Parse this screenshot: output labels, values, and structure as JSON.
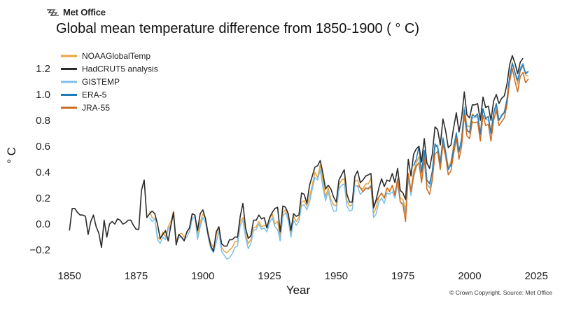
{
  "header": {
    "logo_text": "Met Office",
    "logo_icon": "met-office-wave-icon"
  },
  "chart_data": {
    "type": "line",
    "title": "Global mean temperature difference from 1850-1900 ( ° C)",
    "xlabel": "Year",
    "ylabel": "° C",
    "xlim": [
      1846,
      2026
    ],
    "ylim": [
      -0.28,
      1.34
    ],
    "xticks": [
      1850,
      1875,
      1900,
      1925,
      1950,
      1975,
      2000,
      2025
    ],
    "yticks": [
      -0.2,
      0.0,
      0.2,
      0.4,
      0.6,
      0.8,
      1.0,
      1.2
    ],
    "ytick_labels": [
      "−0.2",
      "0.0",
      "0.2",
      "0.4",
      "0.6",
      "0.8",
      "1.0",
      "1.2"
    ],
    "legend_position": "top-left",
    "grid": false,
    "credit": "© Crown Copyright. Source: Met Office",
    "series": [
      {
        "name": "NOAAGlobalTemp",
        "color": "#e8a33a",
        "x_start": 1880,
        "values": [
          0.1,
          0.05,
          0.04,
          -0.1,
          -0.12,
          -0.06,
          -0.1,
          -0.02,
          0.02,
          0.1,
          -0.13,
          -0.08,
          -0.07,
          -0.1,
          -0.07,
          -0.03,
          0.08,
          0.07,
          -0.08,
          0.01,
          0.08,
          0.04,
          -0.07,
          -0.15,
          -0.18,
          -0.09,
          -0.02,
          -0.18,
          -0.21,
          -0.22,
          -0.2,
          -0.18,
          -0.14,
          -0.13,
          0.02,
          0.05,
          -0.08,
          -0.15,
          -0.12,
          -0.03,
          -0.02,
          0.02,
          -0.02,
          -0.01,
          -0.02,
          0.04,
          0.08,
          0.0,
          0.02,
          -0.1,
          0.09,
          0.11,
          0.06,
          -0.07,
          0.06,
          0.02,
          0.05,
          0.17,
          0.18,
          0.14,
          0.21,
          0.3,
          0.4,
          0.36,
          0.46,
          0.34,
          0.21,
          0.28,
          0.19,
          0.15,
          0.14,
          0.3,
          0.34,
          0.35,
          0.18,
          0.14,
          0.15,
          0.33,
          0.34,
          0.28,
          0.27,
          0.31,
          0.31,
          0.35,
          0.08,
          0.13,
          0.21,
          0.24,
          0.2,
          0.28,
          0.26,
          0.29,
          0.24,
          0.34,
          0.2,
          0.19,
          0.11,
          0.39,
          0.26,
          0.41,
          0.47,
          0.52,
          0.39,
          0.55,
          0.33,
          0.32,
          0.4,
          0.6,
          0.61,
          0.48,
          0.66,
          0.56,
          0.44,
          0.48,
          0.61,
          0.7,
          0.56,
          0.66,
          0.9,
          0.76,
          0.75,
          0.85,
          0.83,
          0.83,
          0.7,
          0.89,
          0.82,
          0.83,
          0.71,
          0.86,
          0.93,
          0.8,
          0.84,
          0.87,
          0.97,
          1.13,
          1.25,
          1.16,
          1.08,
          1.18,
          1.22,
          1.15,
          1.14
        ]
      },
      {
        "name": "HadCRUT5 analysis",
        "color": "#2b2b2b",
        "x_start": 1850,
        "values": [
          -0.05,
          0.12,
          0.12,
          0.09,
          0.07,
          0.07,
          0.06,
          -0.08,
          0.02,
          0.07,
          -0.02,
          -0.07,
          -0.18,
          0.03,
          -0.1,
          0.0,
          0.02,
          0.0,
          0.04,
          0.03,
          0.0,
          0.01,
          0.03,
          0.03,
          -0.01,
          -0.04,
          -0.04,
          0.26,
          0.34,
          0.05,
          0.08,
          0.1,
          0.08,
          0.0,
          -0.11,
          -0.08,
          -0.05,
          -0.13,
          -0.01,
          0.09,
          -0.16,
          -0.08,
          -0.1,
          -0.13,
          -0.06,
          -0.03,
          0.08,
          0.07,
          -0.05,
          0.08,
          0.11,
          0.04,
          -0.08,
          -0.17,
          -0.21,
          -0.06,
          -0.02,
          -0.15,
          -0.17,
          -0.17,
          -0.12,
          -0.12,
          -0.1,
          -0.1,
          0.06,
          0.16,
          -0.03,
          -0.11,
          -0.09,
          0.03,
          0.03,
          0.07,
          0.04,
          0.05,
          -0.03,
          0.05,
          0.09,
          0.12,
          0.13,
          -0.06,
          0.14,
          0.13,
          0.08,
          -0.05,
          0.08,
          0.06,
          0.07,
          0.24,
          0.23,
          0.16,
          0.3,
          0.37,
          0.44,
          0.45,
          0.49,
          0.39,
          0.27,
          0.3,
          0.27,
          0.21,
          0.17,
          0.34,
          0.38,
          0.42,
          0.23,
          0.17,
          0.17,
          0.37,
          0.41,
          0.32,
          0.34,
          0.37,
          0.38,
          0.39,
          0.13,
          0.19,
          0.28,
          0.35,
          0.29,
          0.34,
          0.33,
          0.39,
          0.32,
          0.43,
          0.26,
          0.24,
          0.19,
          0.5,
          0.37,
          0.54,
          0.58,
          0.6,
          0.48,
          0.66,
          0.47,
          0.43,
          0.54,
          0.75,
          0.73,
          0.61,
          0.81,
          0.72,
          0.59,
          0.61,
          0.74,
          0.86,
          0.71,
          0.82,
          1.02,
          0.84,
          0.82,
          0.92,
          0.92,
          0.93,
          0.8,
          0.98,
          0.9,
          0.91,
          0.8,
          0.95,
          1.0,
          0.93,
          0.97,
          0.99,
          1.08,
          1.23,
          1.3,
          1.24,
          1.16,
          1.25,
          1.28
        ]
      },
      {
        "name": "GISTEMP",
        "color": "#7cc0ec",
        "x_start": 1880,
        "values": [
          0.05,
          0.02,
          0.04,
          -0.12,
          -0.15,
          -0.1,
          -0.12,
          -0.04,
          -0.01,
          0.07,
          -0.15,
          -0.1,
          -0.1,
          -0.12,
          -0.1,
          -0.06,
          0.04,
          0.06,
          -0.12,
          -0.02,
          0.05,
          0.01,
          -0.1,
          -0.19,
          -0.22,
          -0.14,
          -0.06,
          -0.21,
          -0.24,
          -0.27,
          -0.26,
          -0.23,
          -0.18,
          -0.17,
          -0.01,
          0.03,
          -0.1,
          -0.19,
          -0.15,
          -0.05,
          -0.04,
          0.0,
          -0.04,
          -0.03,
          -0.06,
          0.01,
          0.05,
          -0.02,
          -0.04,
          -0.13,
          0.06,
          0.09,
          0.03,
          -0.1,
          0.03,
          -0.01,
          0.02,
          0.14,
          0.15,
          0.11,
          0.17,
          0.27,
          0.36,
          0.34,
          0.42,
          0.28,
          0.18,
          0.25,
          0.16,
          0.1,
          0.1,
          0.27,
          0.3,
          0.31,
          0.14,
          0.1,
          0.11,
          0.3,
          0.29,
          0.23,
          0.25,
          0.27,
          0.28,
          0.3,
          0.05,
          0.08,
          0.17,
          0.2,
          0.16,
          0.24,
          0.23,
          0.25,
          0.2,
          0.31,
          0.17,
          0.16,
          0.08,
          0.36,
          0.22,
          0.36,
          0.44,
          0.48,
          0.34,
          0.52,
          0.31,
          0.28,
          0.37,
          0.59,
          0.61,
          0.46,
          0.67,
          0.57,
          0.43,
          0.45,
          0.59,
          0.71,
          0.55,
          0.64,
          0.9,
          0.73,
          0.7,
          0.82,
          0.82,
          0.83,
          0.69,
          0.89,
          0.81,
          0.8,
          0.7,
          0.84,
          0.91,
          0.8,
          0.83,
          0.86,
          0.96,
          1.14,
          1.24,
          1.16,
          1.1,
          1.21,
          1.24,
          1.16,
          1.17
        ]
      },
      {
        "name": "ERA-5",
        "color": "#1f7ab8",
        "x_start": 1979,
        "values": [
          0.45,
          0.5,
          0.6,
          0.4,
          0.57,
          0.34,
          0.31,
          0.41,
          0.62,
          0.59,
          0.47,
          0.66,
          0.55,
          0.42,
          0.46,
          0.58,
          0.7,
          0.56,
          0.66,
          0.88,
          0.72,
          0.71,
          0.84,
          0.83,
          0.85,
          0.69,
          0.89,
          0.81,
          0.83,
          0.7,
          0.86,
          0.93,
          0.8,
          0.84,
          0.86,
          0.96,
          1.14,
          1.24,
          1.17,
          1.11,
          1.19,
          1.23,
          1.16,
          1.18
        ]
      },
      {
        "name": "JRA-55",
        "color": "#cd6a1d",
        "x_start": 1958,
        "values": [
          0.3,
          0.28,
          0.25,
          0.28,
          0.27,
          0.29,
          0.12,
          0.18,
          0.21,
          0.24,
          0.2,
          0.28,
          0.25,
          0.3,
          0.22,
          0.35,
          0.17,
          0.15,
          0.02,
          0.39,
          0.25,
          0.38,
          0.45,
          0.47,
          0.32,
          0.5,
          0.27,
          0.23,
          0.34,
          0.54,
          0.56,
          0.42,
          0.62,
          0.52,
          0.38,
          0.41,
          0.54,
          0.66,
          0.5,
          0.6,
          0.84,
          0.68,
          0.66,
          0.79,
          0.78,
          0.79,
          0.64,
          0.84,
          0.76,
          0.77,
          0.64,
          0.8,
          0.88,
          0.76,
          0.79,
          0.82,
          0.92,
          1.1,
          1.2,
          1.1,
          1.02,
          1.14,
          1.17,
          1.09,
          1.12
        ]
      }
    ]
  }
}
